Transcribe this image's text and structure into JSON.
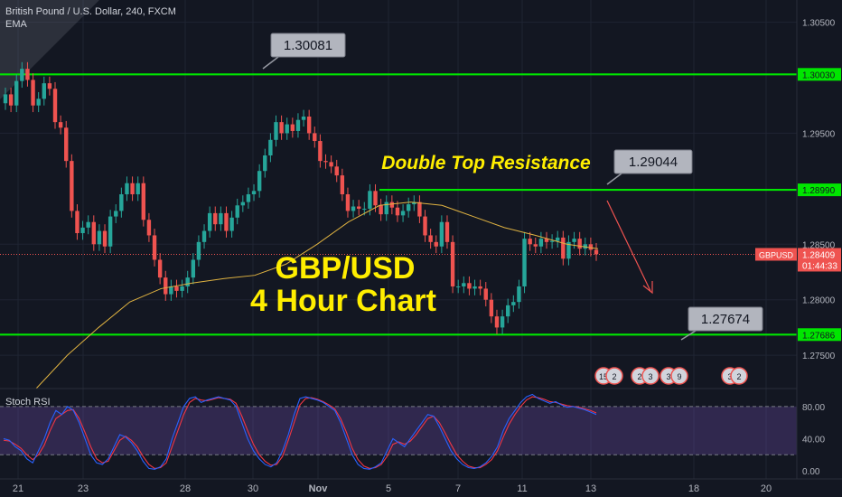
{
  "header": {
    "symbol_line": "British Pound / U.S. Dollar, 240, FXCM",
    "indicator": "EMA"
  },
  "annotations": {
    "big_title_line1": "GBP/USD",
    "big_title_line2": "4 Hour Chart",
    "resistance_label": "Double Top Resistance",
    "callouts": [
      "1.30081",
      "1.29044",
      "1.27674"
    ]
  },
  "price_tag": {
    "symbol": "GBPUSD",
    "price": "1.28409",
    "countdown": "01:44:33"
  },
  "event_badges": [
    "15",
    "2",
    "2",
    "3",
    "3",
    "9",
    "3",
    "2"
  ],
  "colors": {
    "level_line": "#00e600",
    "bull": "#26a69a",
    "bear": "#ef5350",
    "ema": "#e0b341",
    "title_yellow": "#ffee00",
    "rsi_k": "#2962ff",
    "rsi_d": "#f23645"
  },
  "chart_data": [
    {
      "type": "candlestick",
      "title": "",
      "y_axis_ticks": [
        "1.30500",
        "1.29500",
        "1.28500",
        "1.28000",
        "1.27500"
      ],
      "ylim": [
        1.272,
        1.307
      ],
      "x_axis_ticks": [
        "21",
        "23",
        "28",
        "30",
        "Nov",
        "5",
        "7",
        "11",
        "13",
        "18",
        "20"
      ],
      "horizontal_levels": [
        {
          "value": 1.3003,
          "label": "1.30030"
        },
        {
          "value": 1.2899,
          "label": "1.28990"
        },
        {
          "value": 1.27686,
          "label": "1.27686"
        }
      ],
      "last_price": 1.28409,
      "closes": [
        1.2985,
        1.2975,
        1.2997,
        1.3008,
        1.2998,
        1.2975,
        1.2981,
        1.2995,
        1.299,
        1.296,
        1.2955,
        1.2925,
        1.288,
        1.286,
        1.2865,
        1.287,
        1.285,
        1.2862,
        1.2848,
        1.2875,
        1.288,
        1.2895,
        1.2905,
        1.2895,
        1.2905,
        1.2872,
        1.2858,
        1.2836,
        1.282,
        1.2805,
        1.2812,
        1.2808,
        1.2812,
        1.282,
        1.2836,
        1.2852,
        1.2862,
        1.2878,
        1.2868,
        1.2878,
        1.2862,
        1.2874,
        1.2885,
        1.2888,
        1.2895,
        1.2898,
        1.2916,
        1.293,
        1.2944,
        1.296,
        1.295,
        1.2958,
        1.2952,
        1.2962,
        1.2965,
        1.295,
        1.2943,
        1.2925,
        1.2924,
        1.292,
        1.2912,
        1.2895,
        1.288,
        1.2884,
        1.2882,
        1.2882,
        1.2898,
        1.2885,
        1.2877,
        1.2888,
        1.2883,
        1.2876,
        1.288,
        1.2886,
        1.2888,
        1.2875,
        1.2858,
        1.2852,
        1.2848,
        1.287,
        1.2852,
        1.2812,
        1.2812,
        1.2815,
        1.281,
        1.2812,
        1.281,
        1.28,
        1.2785,
        1.2775,
        1.2785,
        1.2795,
        1.2798,
        1.2812,
        1.2855,
        1.285,
        1.2848,
        1.2855,
        1.2852,
        1.2853,
        1.2856,
        1.2837,
        1.2852,
        1.2855,
        1.2846,
        1.285,
        1.2845,
        1.2841
      ],
      "ema_approx": [
        1.272,
        1.275,
        1.2775,
        1.2798,
        1.281,
        1.2815,
        1.2819,
        1.2822,
        1.2832,
        1.285,
        1.287,
        1.2885,
        1.2888,
        1.2885,
        1.2875,
        1.2865,
        1.2858,
        1.285,
        1.2846
      ],
      "stoch_rsi": {
        "label": "Stoch RSI",
        "ticks": [
          "80.00",
          "40.00",
          "0.00"
        ],
        "ylim": [
          -10,
          100
        ],
        "k": [
          40,
          38,
          30,
          25,
          15,
          10,
          25,
          40,
          60,
          75,
          70,
          80,
          75,
          60,
          40,
          20,
          10,
          8,
          15,
          30,
          45,
          42,
          35,
          25,
          12,
          3,
          2,
          5,
          15,
          40,
          60,
          80,
          90,
          92,
          85,
          88,
          90,
          92,
          90,
          88,
          80,
          60,
          40,
          25,
          15,
          8,
          5,
          10,
          25,
          45,
          70,
          90,
          92,
          90,
          88,
          85,
          80,
          75,
          60,
          40,
          20,
          8,
          3,
          2,
          5,
          10,
          25,
          40,
          35,
          30,
          40,
          50,
          60,
          70,
          68,
          55,
          40,
          25,
          15,
          8,
          4,
          3,
          5,
          10,
          18,
          30,
          50,
          65,
          75,
          85,
          92,
          95,
          90,
          87,
          84,
          86,
          82,
          79,
          80,
          78,
          76,
          73,
          70
        ],
        "d": [
          38,
          37,
          33,
          28,
          20,
          14,
          20,
          32,
          50,
          65,
          70,
          75,
          76,
          65,
          48,
          30,
          15,
          10,
          12,
          25,
          38,
          43,
          38,
          30,
          18,
          8,
          3,
          4,
          10,
          30,
          50,
          70,
          85,
          90,
          88,
          87,
          89,
          91,
          90,
          89,
          84,
          68,
          50,
          33,
          20,
          12,
          7,
          8,
          18,
          38,
          60,
          82,
          90,
          91,
          89,
          86,
          82,
          77,
          65,
          48,
          28,
          14,
          6,
          3,
          4,
          8,
          18,
          33,
          36,
          33,
          37,
          45,
          55,
          65,
          68,
          60,
          47,
          33,
          20,
          12,
          6,
          4,
          4,
          8,
          14,
          25,
          42,
          58,
          70,
          80,
          88,
          92,
          91,
          89,
          86,
          85,
          83,
          81,
          80,
          79,
          77,
          75,
          72
        ]
      }
    }
  ]
}
